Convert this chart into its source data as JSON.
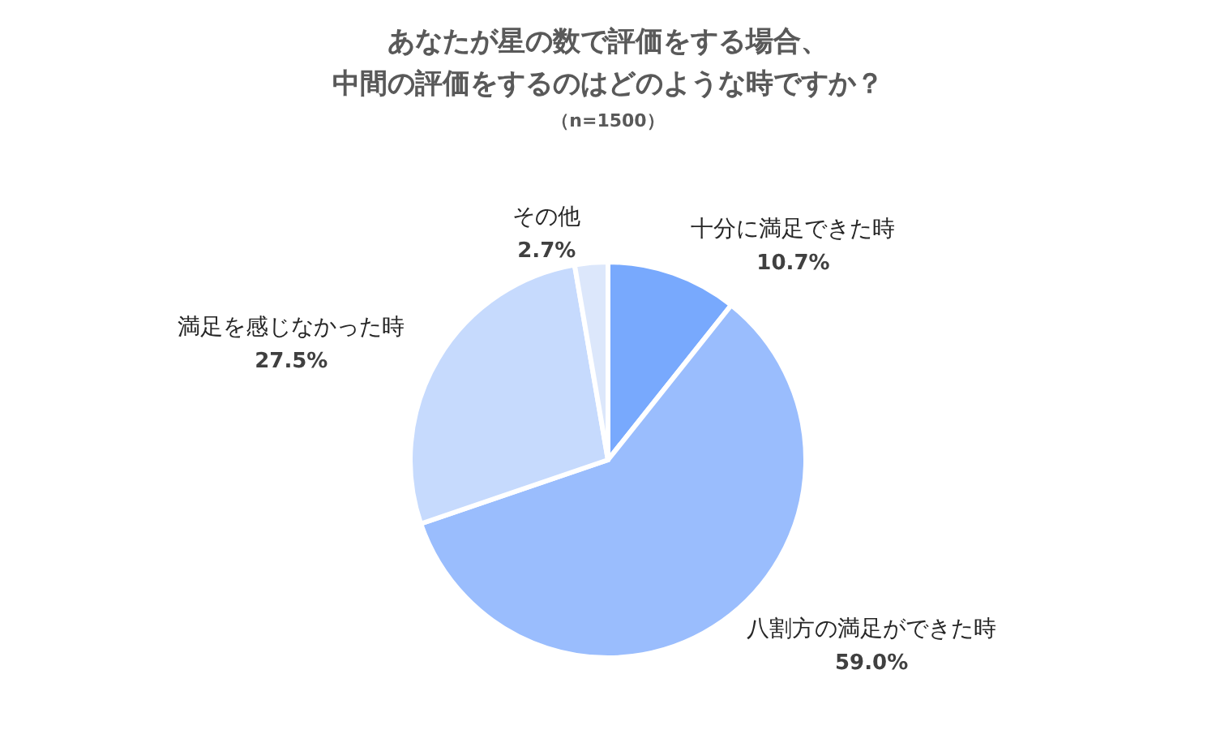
{
  "chart_data": {
    "type": "pie",
    "title": "あなたが星の数で評価をする場合、中間の評価をするのはどのような時ですか？",
    "subtitle": "（n=1500）",
    "categories": [
      "十分に満足できた時",
      "八割方の満足ができた時",
      "満足を感じなかった時",
      "その他"
    ],
    "values": [
      10.7,
      59.0,
      27.5,
      2.7
    ],
    "value_labels": [
      "10.7%",
      "59.0%",
      "27.5%",
      "2.7%"
    ],
    "colors": [
      "#78a9fd",
      "#9abdfd",
      "#c6dafd",
      "#dce7fb"
    ],
    "legend": false
  }
}
